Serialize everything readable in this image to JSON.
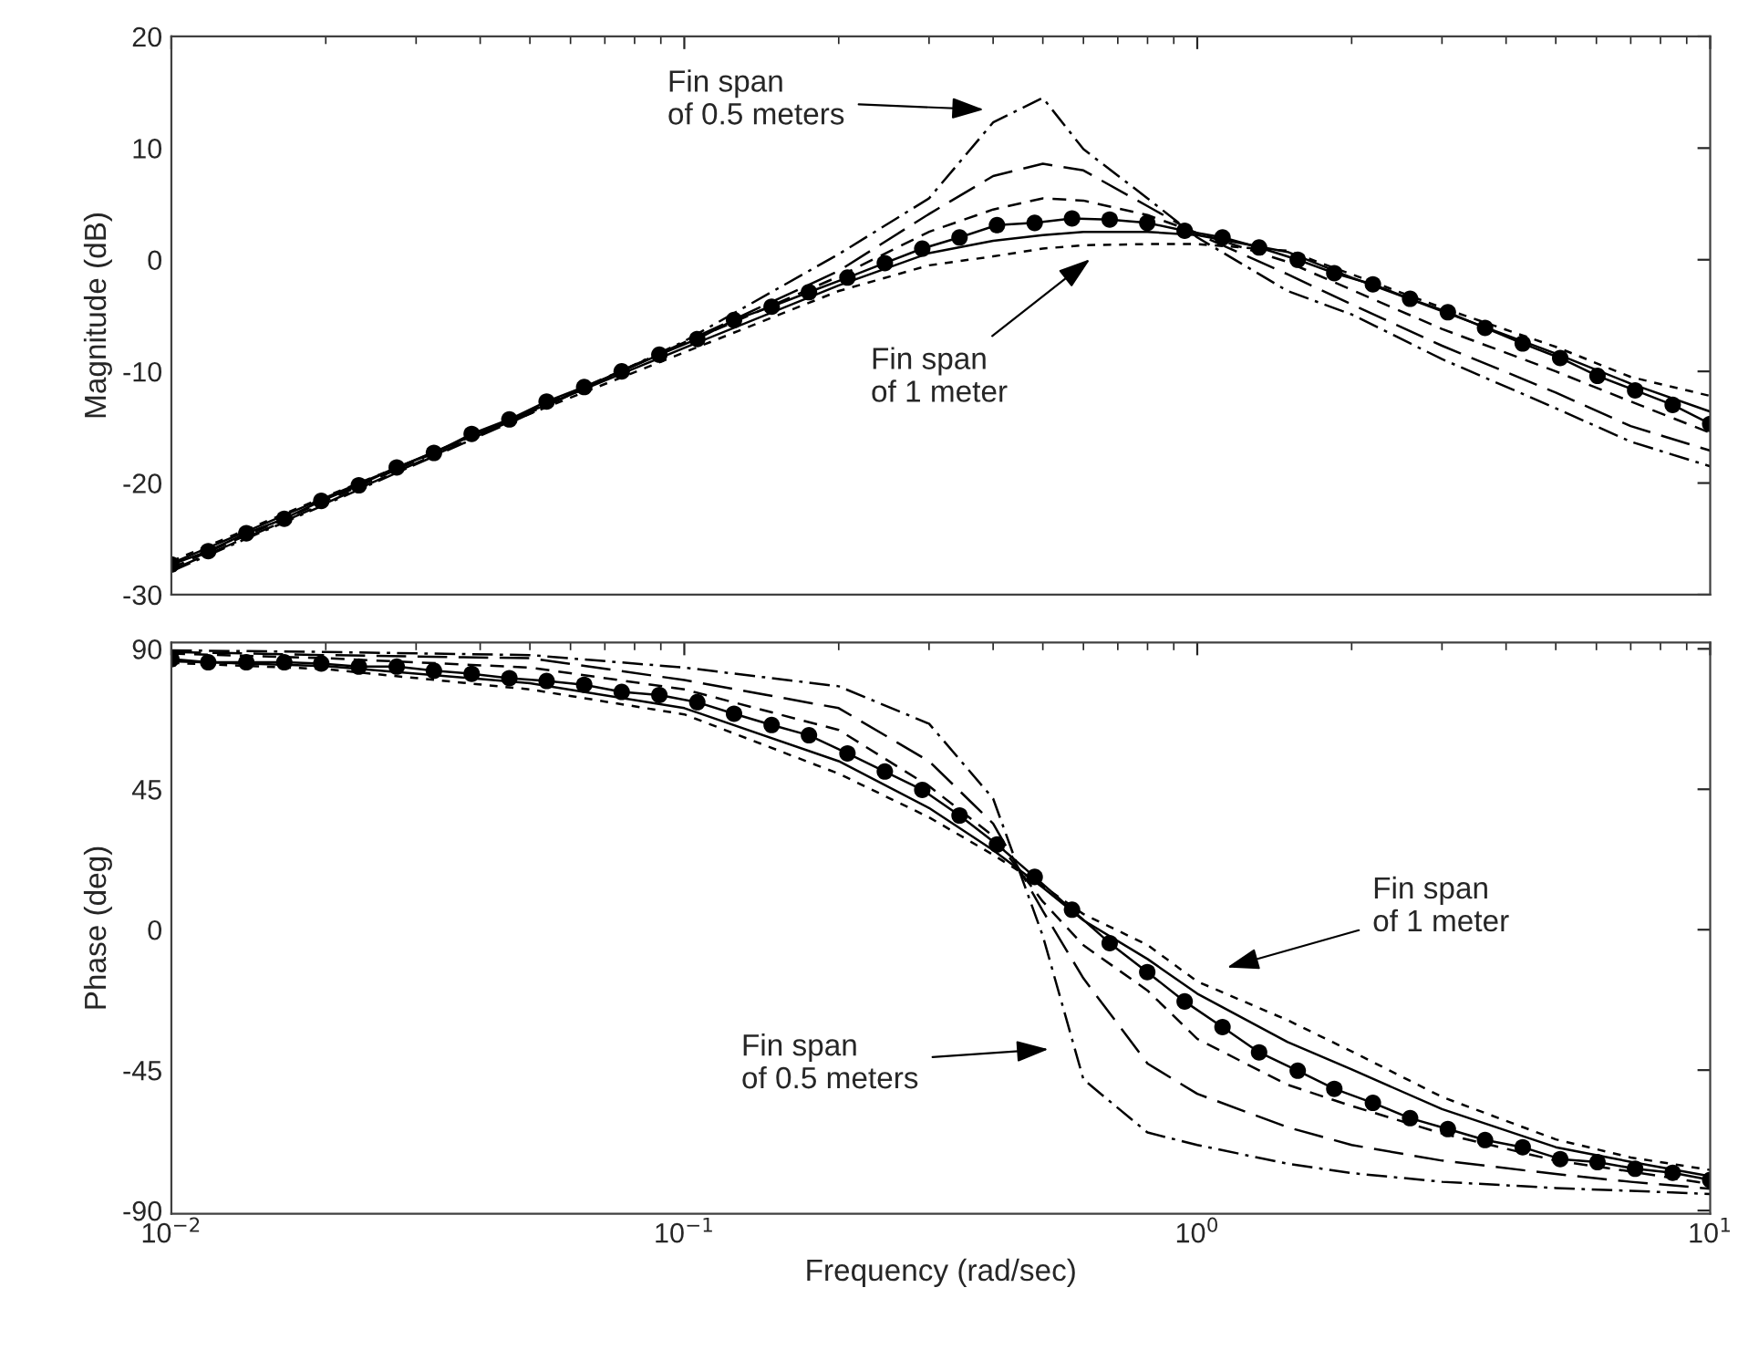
{
  "chart_data": [
    {
      "type": "line",
      "ylabel": "Magnitude (dB)",
      "log": "x",
      "xlim": [
        0.01,
        10
      ],
      "ylim": [
        -30,
        20
      ],
      "xticks": [
        {
          "value": 0.01,
          "label": null
        },
        {
          "value": 0.1,
          "label": null
        },
        {
          "value": 1,
          "label": null
        },
        {
          "value": 10,
          "label": null
        }
      ],
      "yticks": [
        -30,
        -20,
        -10,
        0,
        10,
        20
      ],
      "tick_labels": "y",
      "annotations": [
        "Fin span\nof 0.5 meters",
        "Fin span\nof 1 meter"
      ],
      "series": [
        {
          "color": "#000000",
          "line_style": "dashdot",
          "x": [
            0.01,
            0.02,
            0.05,
            0.1,
            0.2,
            0.3,
            0.4,
            0.5,
            0.6,
            0.8,
            1,
            1.5,
            2,
            3,
            5,
            7,
            10
          ],
          "values": [
            -27.9,
            -21.9,
            -13.8,
            -7.3,
            0.5,
            5.5,
            12.3,
            14.5,
            9.9,
            5.5,
            2.0,
            -2.8,
            -4.9,
            -8.9,
            -13.3,
            -16.3,
            -18.5
          ]
        },
        {
          "color": "#000000",
          "line_style": "longdash",
          "x": [
            0.01,
            0.02,
            0.05,
            0.1,
            0.2,
            0.3,
            0.4,
            0.5,
            0.6,
            0.8,
            1,
            1.5,
            2,
            3,
            5,
            7,
            10
          ],
          "values": [
            -27.8,
            -21.8,
            -13.7,
            -7.4,
            -1.0,
            4.1,
            7.5,
            8.6,
            8.0,
            4.8,
            2.3,
            -1.3,
            -4.0,
            -7.7,
            -11.9,
            -14.9,
            -17.1
          ]
        },
        {
          "color": "#000000",
          "line_style": "dashed",
          "x": [
            0.01,
            0.02,
            0.05,
            0.1,
            0.2,
            0.3,
            0.4,
            0.5,
            0.6,
            0.8,
            1,
            1.5,
            2,
            3,
            5,
            7,
            10
          ],
          "values": [
            -27.6,
            -21.6,
            -13.5,
            -7.5,
            -1.5,
            2.5,
            4.5,
            5.5,
            5.3,
            4.0,
            2.4,
            -0.2,
            -2.7,
            -6.2,
            -10.0,
            -12.7,
            -15.5
          ]
        },
        {
          "color": "#000000",
          "line_style": "solid",
          "marker": "circle",
          "x": [
            0.01,
            0.0118,
            0.014,
            0.0166,
            0.0196,
            0.0232,
            0.0275,
            0.0325,
            0.0385,
            0.0456,
            0.0539,
            0.0638,
            0.0755,
            0.0894,
            0.106,
            0.125,
            0.148,
            0.175,
            0.208,
            0.246,
            0.291,
            0.344,
            0.407,
            0.482,
            0.57,
            0.675,
            0.799,
            0.945,
            1.12,
            1.32,
            1.57,
            1.85,
            2.2,
            2.6,
            3.08,
            3.64,
            4.31,
            5.1,
            6.03,
            7.14,
            8.45,
            10
          ],
          "values": [
            -27.3,
            -26.1,
            -24.5,
            -23.2,
            -21.6,
            -20.2,
            -18.6,
            -17.3,
            -15.6,
            -14.3,
            -12.7,
            -11.4,
            -10.0,
            -8.5,
            -7.1,
            -5.4,
            -4.2,
            -2.9,
            -1.6,
            -0.3,
            1.0,
            2.0,
            3.1,
            3.3,
            3.7,
            3.6,
            3.3,
            2.6,
            2.0,
            1.1,
            0.0,
            -1.2,
            -2.2,
            -3.5,
            -4.7,
            -6.1,
            -7.5,
            -8.8,
            -10.4,
            -11.7,
            -13.0,
            -14.7
          ]
        },
        {
          "color": "#000000",
          "line_style": "solid",
          "x": [
            0.01,
            0.02,
            0.05,
            0.1,
            0.2,
            0.3,
            0.4,
            0.5,
            0.6,
            0.8,
            1,
            1.5,
            2,
            3,
            5,
            7,
            10
          ],
          "values": [
            -27.2,
            -21.3,
            -13.6,
            -7.9,
            -2.3,
            0.6,
            1.7,
            2.2,
            2.5,
            2.5,
            2.2,
            0.7,
            -1.6,
            -4.6,
            -8.4,
            -11.1,
            -13.6
          ]
        },
        {
          "color": "#000000",
          "line_style": "shortdash",
          "x": [
            0.01,
            0.02,
            0.05,
            0.1,
            0.2,
            0.3,
            0.4,
            0.5,
            0.6,
            0.8,
            1,
            1.5,
            2,
            3,
            5,
            7,
            10
          ],
          "values": [
            -27.0,
            -21.2,
            -13.8,
            -8.3,
            -2.8,
            -0.5,
            0.3,
            1.0,
            1.3,
            1.4,
            1.4,
            0.8,
            -1.3,
            -4.3,
            -7.8,
            -10.5,
            -12.2
          ]
        }
      ]
    },
    {
      "type": "line",
      "xlabel": "Frequency (rad/sec)",
      "ylabel": "Phase (deg)",
      "log": "x",
      "xlim": [
        0.01,
        10
      ],
      "ylim": [
        -91,
        92
      ],
      "xticks": [
        {
          "value": 0.01,
          "label": "10$^{−2}$"
        },
        {
          "value": 0.1,
          "label": "10$^{−1}$"
        },
        {
          "value": 1,
          "label": "10$^{0}$"
        },
        {
          "value": 10,
          "label": "10$^{1}$"
        }
      ],
      "yticks": [
        -90,
        -45,
        0,
        45,
        90
      ],
      "annotations": [
        "Fin span\nof 1 meter",
        "Fin span\nof 0.5 meters"
      ],
      "series": [
        {
          "color": "#000000",
          "line_style": "dashdot",
          "x": [
            0.01,
            0.02,
            0.05,
            0.1,
            0.2,
            0.3,
            0.4,
            0.5,
            0.6,
            0.8,
            1,
            1.5,
            2,
            3,
            5,
            7,
            10
          ],
          "values": [
            89.5,
            89,
            88,
            84,
            78,
            66,
            42,
            -2,
            -48,
            -65,
            -69,
            -75,
            -78,
            -80.8,
            -82.8,
            -83.7,
            -84.7
          ]
        },
        {
          "color": "#000000",
          "line_style": "longdash",
          "x": [
            0.01,
            0.02,
            0.05,
            0.1,
            0.2,
            0.3,
            0.4,
            0.5,
            0.6,
            0.8,
            1,
            1.5,
            2,
            3,
            5,
            7,
            10
          ],
          "values": [
            89,
            88,
            87,
            80,
            71,
            54,
            34,
            6,
            -15.6,
            -42.9,
            -52.6,
            -63.3,
            -69,
            -74,
            -78.3,
            -80.8,
            -83
          ]
        },
        {
          "color": "#000000",
          "line_style": "dashed",
          "x": [
            0.01,
            0.02,
            0.05,
            0.1,
            0.2,
            0.3,
            0.4,
            0.5,
            0.6,
            0.8,
            1,
            1.5,
            2,
            3,
            5,
            7,
            10
          ],
          "values": [
            88.5,
            87,
            84,
            77,
            64,
            46,
            30,
            9,
            -5,
            -19.5,
            -35,
            -49.7,
            -56.5,
            -65.3,
            -74,
            -77.5,
            -81.5
          ]
        },
        {
          "color": "#000000",
          "line_style": "solid",
          "marker": "circle",
          "x": [
            0.01,
            0.0118,
            0.014,
            0.0166,
            0.0196,
            0.0232,
            0.0275,
            0.0325,
            0.0385,
            0.0456,
            0.0539,
            0.0638,
            0.0755,
            0.0894,
            0.106,
            0.125,
            0.148,
            0.175,
            0.208,
            0.246,
            0.291,
            0.344,
            0.407,
            0.482,
            0.57,
            0.675,
            0.799,
            0.945,
            1.12,
            1.32,
            1.57,
            1.85,
            2.2,
            2.6,
            3.08,
            3.64,
            4.31,
            5.1,
            6.03,
            7.14,
            8.45,
            10
          ],
          "values": [
            86.7,
            85.7,
            85.7,
            85.7,
            85.3,
            84.3,
            84.3,
            83.0,
            82.0,
            80.6,
            79.7,
            78.5,
            76.2,
            75.2,
            72.9,
            69.2,
            65.6,
            62.3,
            56.5,
            50.7,
            44.8,
            36.6,
            27.3,
            16.9,
            6.4,
            -4.3,
            -13.6,
            -23.0,
            -31.2,
            -39.3,
            -45.2,
            -51.0,
            -55.5,
            -60.4,
            -63.9,
            -67.4,
            -69.7,
            -73.5,
            -74.5,
            -76.6,
            -77.9,
            -80.2
          ]
        },
        {
          "color": "#000000",
          "line_style": "solid",
          "x": [
            0.01,
            0.02,
            0.05,
            0.1,
            0.2,
            0.3,
            0.4,
            0.5,
            0.6,
            0.8,
            1,
            1.5,
            2,
            3,
            5,
            7,
            10
          ],
          "values": [
            86,
            84.5,
            79,
            71,
            54,
            39,
            25.5,
            13.5,
            3,
            -9.4,
            -20.5,
            -36,
            -44.8,
            -57.5,
            -69.7,
            -74.4,
            -79
          ]
        },
        {
          "color": "#000000",
          "line_style": "shortdash",
          "x": [
            0.01,
            0.02,
            0.05,
            0.1,
            0.2,
            0.3,
            0.4,
            0.5,
            0.6,
            0.8,
            1,
            1.5,
            2,
            3,
            5,
            7,
            10
          ],
          "values": [
            85.5,
            83.5,
            77,
            69,
            50,
            36,
            24,
            14,
            5,
            -4.9,
            -16.6,
            -29,
            -39,
            -53.6,
            -67.2,
            -73,
            -77
          ]
        }
      ]
    }
  ]
}
